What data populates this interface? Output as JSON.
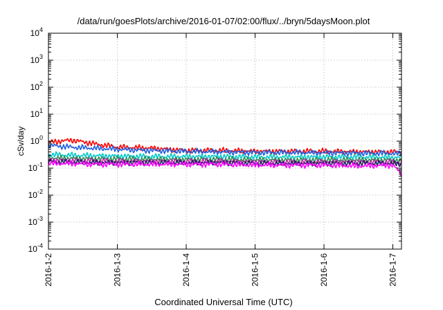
{
  "chart_data": {
    "type": "line",
    "title": "/data/run/goesPlots/archive/2016-01-07/02:00/flux/../bryn/5daysMoon.plot",
    "xlabel": "Coordinated Universal Time (UTC)",
    "ylabel": "cSv/day",
    "yscale": "log",
    "ylim": [
      0.0001,
      10000
    ],
    "ytick_labels": [
      {
        "base": "10",
        "exp": "-4"
      },
      {
        "base": "10",
        "exp": "-3"
      },
      {
        "base": "10",
        "exp": "-2"
      },
      {
        "base": "10",
        "exp": "-1"
      },
      {
        "base": "10",
        "exp": "0"
      },
      {
        "base": "10",
        "exp": "1"
      },
      {
        "base": "10",
        "exp": "2"
      },
      {
        "base": "10",
        "exp": "3"
      },
      {
        "base": "10",
        "exp": "4"
      }
    ],
    "xlim": [
      "2016-01-02",
      "2016-01-07 03:00"
    ],
    "x_tick_labels": [
      "2016-1-2",
      "2016-1-3",
      "2016-1-4",
      "2016-1-5",
      "2016-1-6",
      "2016-1-7"
    ],
    "grid": true,
    "series": [
      {
        "color": "#ff0000",
        "x": [
          "2016-01-02 00:00",
          "2016-01-02 08:00",
          "2016-01-02 16:00",
          "2016-01-03 00:00",
          "2016-01-03 12:00",
          "2016-01-04 00:00",
          "2016-01-04 12:00",
          "2016-01-05 00:00",
          "2016-01-05 12:00",
          "2016-01-06 00:00",
          "2016-01-06 12:00",
          "2016-01-07 00:00",
          "2016-01-07 03:00"
        ],
        "values": [
          0.9,
          1.1,
          0.8,
          0.6,
          0.55,
          0.45,
          0.45,
          0.42,
          0.42,
          0.42,
          0.4,
          0.4,
          0.38
        ]
      },
      {
        "color": "#1f5fe0",
        "x": [
          "2016-01-02 00:00",
          "2016-01-02 08:00",
          "2016-01-02 16:00",
          "2016-01-03 00:00",
          "2016-01-03 12:00",
          "2016-01-04 00:00",
          "2016-01-04 12:00",
          "2016-01-05 00:00",
          "2016-01-05 12:00",
          "2016-01-06 00:00",
          "2016-01-06 12:00",
          "2016-01-07 00:00",
          "2016-01-07 03:00"
        ],
        "values": [
          0.7,
          0.6,
          0.55,
          0.5,
          0.45,
          0.42,
          0.4,
          0.38,
          0.38,
          0.37,
          0.36,
          0.35,
          0.34
        ]
      },
      {
        "color": "#00c8c8",
        "x": [
          "2016-01-02 00:00",
          "2016-01-02 08:00",
          "2016-01-02 16:00",
          "2016-01-03 00:00",
          "2016-01-03 12:00",
          "2016-01-04 00:00",
          "2016-01-04 12:00",
          "2016-01-05 00:00",
          "2016-01-05 12:00",
          "2016-01-06 00:00",
          "2016-01-06 12:00",
          "2016-01-07 00:00",
          "2016-01-07 03:00"
        ],
        "values": [
          0.32,
          0.3,
          0.29,
          0.28,
          0.27,
          0.27,
          0.27,
          0.26,
          0.26,
          0.26,
          0.26,
          0.25,
          0.25
        ]
      },
      {
        "color": "#2e8b57",
        "x": [
          "2016-01-02 00:00",
          "2016-01-02 08:00",
          "2016-01-02 16:00",
          "2016-01-03 00:00",
          "2016-01-03 12:00",
          "2016-01-04 00:00",
          "2016-01-04 12:00",
          "2016-01-05 00:00",
          "2016-01-05 12:00",
          "2016-01-06 00:00",
          "2016-01-06 12:00",
          "2016-01-07 00:00",
          "2016-01-07 03:00"
        ],
        "values": [
          0.24,
          0.23,
          0.22,
          0.22,
          0.21,
          0.21,
          0.21,
          0.2,
          0.2,
          0.2,
          0.2,
          0.2,
          0.19
        ]
      },
      {
        "color": "#b0309a",
        "x": [
          "2016-01-02 00:00",
          "2016-01-02 08:00",
          "2016-01-02 16:00",
          "2016-01-03 00:00",
          "2016-01-03 12:00",
          "2016-01-04 00:00",
          "2016-01-04 12:00",
          "2016-01-05 00:00",
          "2016-01-05 12:00",
          "2016-01-06 00:00",
          "2016-01-06 12:00",
          "2016-01-07 00:00",
          "2016-01-07 03:00"
        ],
        "values": [
          0.2,
          0.19,
          0.19,
          0.18,
          0.18,
          0.18,
          0.18,
          0.17,
          0.17,
          0.17,
          0.17,
          0.17,
          0.16
        ]
      },
      {
        "color": "#202060",
        "x": [
          "2016-01-02 00:00",
          "2016-01-02 08:00",
          "2016-01-02 16:00",
          "2016-01-03 00:00",
          "2016-01-03 12:00",
          "2016-01-04 00:00",
          "2016-01-04 12:00",
          "2016-01-05 00:00",
          "2016-01-05 12:00",
          "2016-01-06 00:00",
          "2016-01-06 12:00",
          "2016-01-07 00:00",
          "2016-01-07 03:00"
        ],
        "values": [
          0.17,
          0.17,
          0.16,
          0.16,
          0.16,
          0.16,
          0.16,
          0.15,
          0.15,
          0.15,
          0.15,
          0.15,
          0.14
        ]
      },
      {
        "color": "#ff00ff",
        "x": [
          "2016-01-02 00:00",
          "2016-01-02 08:00",
          "2016-01-02 16:00",
          "2016-01-03 00:00",
          "2016-01-03 12:00",
          "2016-01-04 00:00",
          "2016-01-04 12:00",
          "2016-01-05 00:00",
          "2016-01-05 12:00",
          "2016-01-06 00:00",
          "2016-01-06 12:00",
          "2016-01-07 00:00",
          "2016-01-07 03:00"
        ],
        "values": [
          0.15,
          0.15,
          0.14,
          0.14,
          0.14,
          0.14,
          0.14,
          0.13,
          0.13,
          0.13,
          0.12,
          0.13,
          0.06
        ]
      }
    ]
  }
}
